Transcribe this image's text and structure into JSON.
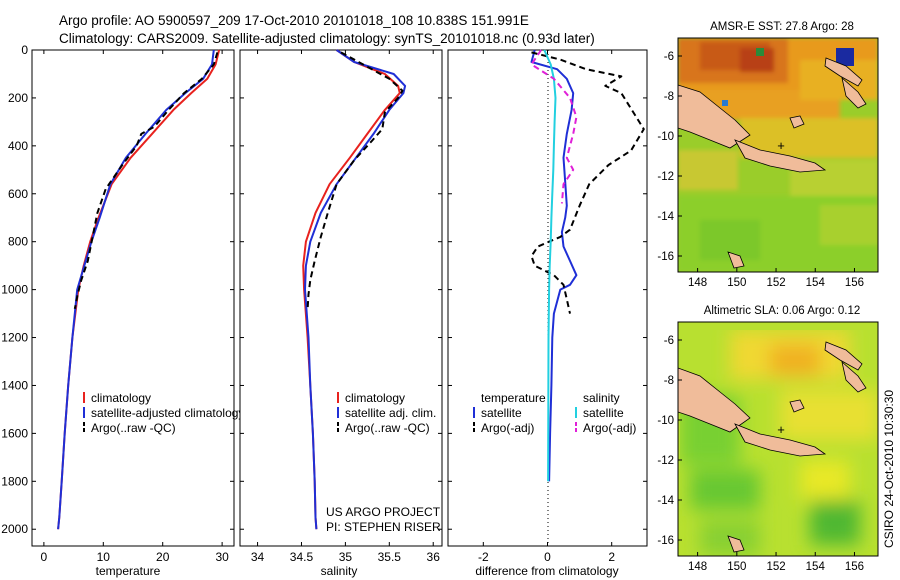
{
  "header": {
    "line1": "Argo profile: AO 5900597_209 17-Oct-2010 20101018_108 10.838S 151.991E",
    "line2": "Climatology: CARS2009. Satellite-adjusted climatology: synTS_20101018.nc (0.93d later)"
  },
  "side_label": "CSIRO 24-Oct-2010 10:30:30",
  "credit": {
    "line1": "US ARGO PROJECT",
    "line2": "PI: STEPHEN RISER"
  },
  "colors": {
    "climatology": "#e8221e",
    "satellite": "#1f2fd6",
    "argo": "#000000",
    "temp_sat": "#22d0e0",
    "sal_argo": "#e020d8"
  },
  "chart_data": [
    {
      "type": "line",
      "title": "",
      "xlabel": "temperature",
      "ylabel": "",
      "xlim": [
        -2,
        32
      ],
      "ylim": [
        2070,
        0
      ],
      "xticks": [
        0,
        10,
        20,
        30
      ],
      "yticks": [
        0,
        200,
        400,
        600,
        800,
        1000,
        1200,
        1400,
        1600,
        1800,
        2000
      ],
      "legend": [
        "climatology",
        "satellite-adjusted climatology",
        "Argo(..raw -QC)"
      ],
      "series": [
        {
          "name": "climatology",
          "color": "#e8221e",
          "dash": "",
          "x": [
            29.5,
            28.9,
            27.5,
            24.8,
            21.8,
            18.2,
            14.6,
            11.4,
            9.2,
            7.8,
            6.7,
            5.8,
            4.8,
            4.1,
            3.5,
            3.0,
            2.6,
            2.4
          ],
          "y": [
            0,
            60,
            120,
            180,
            250,
            350,
            450,
            560,
            700,
            800,
            900,
            1000,
            1200,
            1400,
            1600,
            1800,
            1950,
            2000
          ]
        },
        {
          "name": "satellite-adjusted climatology",
          "color": "#1f2fd6",
          "dash": "",
          "x": [
            28.6,
            28.3,
            26.8,
            23.8,
            20.6,
            17.1,
            13.8,
            11.2,
            9.4,
            8.0,
            6.8,
            5.6,
            4.8,
            4.1,
            3.5,
            3.0,
            2.6,
            2.4
          ],
          "y": [
            0,
            60,
            120,
            180,
            250,
            350,
            450,
            560,
            700,
            800,
            900,
            1000,
            1200,
            1400,
            1600,
            1800,
            1950,
            2000
          ]
        },
        {
          "name": "Argo(..raw -QC)",
          "color": "#000000",
          "dash": "6,4",
          "x": [
            29.2,
            28.6,
            26.6,
            23.6,
            21.0,
            18.6,
            16.4,
            15.6,
            13.2,
            10.4,
            9.0,
            8.2,
            7.4,
            6.3,
            5.7,
            5.2
          ],
          "y": [
            10,
            60,
            120,
            180,
            250,
            320,
            350,
            400,
            480,
            580,
            680,
            780,
            880,
            960,
            1020,
            1080
          ]
        }
      ]
    },
    {
      "type": "line",
      "title": "",
      "xlabel": "salinity",
      "ylabel": "",
      "xlim": [
        33.8,
        36.1
      ],
      "ylim": [
        2070,
        0
      ],
      "xticks": [
        34,
        34.5,
        35,
        35.5,
        36
      ],
      "yticks": [
        0,
        200,
        400,
        600,
        800,
        1000,
        1200,
        1400,
        1600,
        1800,
        2000
      ],
      "legend": [
        "climatology",
        "satellite adj. clim.",
        "Argo(..raw -QC)"
      ],
      "series": [
        {
          "name": "climatology",
          "color": "#e8221e",
          "dash": "",
          "x": [
            34.9,
            35.1,
            35.45,
            35.6,
            35.62,
            35.45,
            35.25,
            35.05,
            34.82,
            34.66,
            34.55,
            34.52,
            34.53,
            34.57,
            34.6,
            34.63,
            34.65,
            34.66,
            34.67
          ],
          "y": [
            0,
            50,
            100,
            150,
            180,
            250,
            350,
            450,
            560,
            680,
            800,
            900,
            1000,
            1200,
            1400,
            1600,
            1800,
            1950,
            2000
          ]
        },
        {
          "name": "satellite adj. clim.",
          "color": "#1f2fd6",
          "dash": "",
          "x": [
            34.9,
            35.1,
            35.55,
            35.68,
            35.66,
            35.5,
            35.32,
            35.12,
            34.9,
            34.72,
            34.6,
            34.55,
            34.54,
            34.58,
            34.6,
            34.63,
            34.65,
            34.66,
            34.67
          ],
          "y": [
            0,
            50,
            100,
            150,
            180,
            250,
            350,
            450,
            560,
            680,
            800,
            900,
            1000,
            1200,
            1400,
            1600,
            1800,
            1950,
            2000
          ]
        },
        {
          "name": "Argo(..raw -QC)",
          "color": "#000000",
          "dash": "6,4",
          "x": [
            34.95,
            35.2,
            35.5,
            35.65,
            35.6,
            35.45,
            35.42,
            35.3,
            35.1,
            34.9,
            34.8,
            34.72,
            34.65,
            34.6,
            34.58,
            34.57
          ],
          "y": [
            10,
            60,
            120,
            170,
            200,
            260,
            330,
            380,
            460,
            560,
            680,
            780,
            880,
            960,
            1020,
            1080
          ]
        }
      ]
    },
    {
      "type": "line",
      "title": "",
      "xlabel": "difference from climatology",
      "ylabel": "",
      "xlim": [
        -3.1,
        3.1
      ],
      "ylim": [
        2070,
        0
      ],
      "xticks": [
        -2,
        0,
        2
      ],
      "yticks": [
        0,
        200,
        400,
        600,
        800,
        1000,
        1200,
        1400,
        1600,
        1800,
        2000
      ],
      "legend_titles": [
        "temperature",
        "salinity"
      ],
      "legend": [
        "satellite",
        "Argo(-adj)",
        "satellite",
        "Argo(-adj)"
      ],
      "series": [
        {
          "name": "temperature satellite",
          "color": "#1f2fd6",
          "dash": "",
          "x": [
            -0.4,
            -0.5,
            0.3,
            0.6,
            0.8,
            0.75,
            0.6,
            0.5,
            0.55,
            0.6,
            0.55,
            0.45,
            0.5,
            0.7,
            0.9,
            0.7,
            0.4,
            0.3,
            0.2,
            0.15,
            0.12,
            0.08,
            0.05
          ],
          "y": [
            0,
            50,
            80,
            120,
            180,
            250,
            350,
            450,
            550,
            650,
            700,
            760,
            820,
            880,
            940,
            980,
            1000,
            1050,
            1100,
            1200,
            1400,
            1600,
            1800
          ]
        },
        {
          "name": "temperature Argo(-adj)",
          "color": "#000000",
          "dash": "6,4",
          "x": [
            -0.5,
            0.4,
            1.2,
            2.3,
            1.8,
            2.3,
            3.0,
            2.6,
            1.9,
            1.3,
            1.0,
            0.7,
            0.4,
            -0.3,
            -0.5,
            -0.4,
            0.2,
            0.5,
            0.6,
            0.7
          ],
          "y": [
            10,
            40,
            80,
            110,
            150,
            180,
            330,
            420,
            480,
            560,
            650,
            750,
            780,
            820,
            860,
            900,
            940,
            980,
            1040,
            1100
          ]
        },
        {
          "name": "salinity satellite",
          "color": "#22d0e0",
          "dash": "",
          "x": [
            -0.1,
            0.1,
            0.2,
            0.25,
            0.22,
            0.2,
            0.18,
            0.15,
            0.12,
            0.1,
            0.07,
            0.05,
            0.03,
            0.02
          ],
          "y": [
            0,
            60,
            120,
            200,
            300,
            400,
            500,
            600,
            700,
            800,
            900,
            1000,
            1200,
            1800
          ]
        },
        {
          "name": "salinity Argo(-adj)",
          "color": "#e020d8",
          "dash": "6,4",
          "x": [
            -0.2,
            -0.5,
            0.2,
            0.7,
            0.9,
            0.8,
            0.6,
            0.8,
            0.5,
            0.45
          ],
          "y": [
            0,
            60,
            120,
            200,
            280,
            350,
            450,
            500,
            560,
            640
          ]
        }
      ]
    },
    {
      "type": "heatmap",
      "title": "AMSR-E SST: 27.8 Argo: 28",
      "xticks": [
        148,
        150,
        152,
        154,
        156
      ],
      "yticks": [
        -6,
        -8,
        -10,
        -12,
        -14,
        -16
      ],
      "xlim": [
        147.0,
        157.2
      ],
      "ylim": [
        -5.1,
        -16.8
      ],
      "argo_point": [
        152.0,
        -10.8
      ]
    },
    {
      "type": "heatmap",
      "title": "Altimetric SLA: 0.06 Argo: 0.12",
      "xticks": [
        148,
        150,
        152,
        154,
        156
      ],
      "yticks": [
        -6,
        -8,
        -10,
        -12,
        -14,
        -16
      ],
      "xlim": [
        147.0,
        157.2
      ],
      "ylim": [
        -5.1,
        -16.8
      ],
      "argo_point": [
        152.0,
        -10.8
      ]
    }
  ]
}
